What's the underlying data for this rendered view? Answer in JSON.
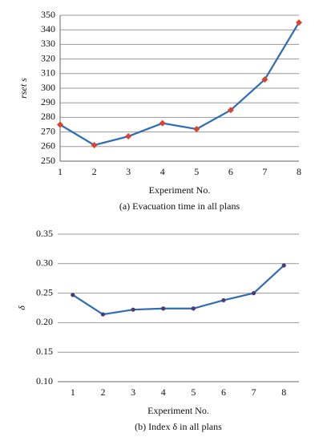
{
  "chart_data": [
    {
      "type": "line",
      "y_label": "rset s",
      "x_label": "Experiment No.",
      "caption": "(a) Evacuation time in all plans",
      "x": [
        1,
        2,
        3,
        4,
        5,
        6,
        7,
        8
      ],
      "xlim": [
        1,
        8
      ],
      "xticks": [
        1,
        2,
        3,
        4,
        5,
        6,
        7,
        8
      ],
      "series": [
        {
          "name": "rset",
          "color": "#2e6db4",
          "marker": "diamond",
          "marker_color": "#d9432f",
          "values": [
            275,
            261,
            267,
            276,
            272,
            285,
            306,
            345
          ]
        }
      ],
      "ylim": [
        250,
        350
      ],
      "yticks": [
        250,
        260,
        270,
        280,
        290,
        300,
        310,
        320,
        330,
        340,
        350
      ],
      "grid": true
    },
    {
      "type": "line",
      "y_label": "δ",
      "x_label": "Experiment No.",
      "caption": "(b) Index δ in all plans",
      "categories": [
        "1",
        "2",
        "3",
        "4",
        "5",
        "6",
        "7",
        "8"
      ],
      "series": [
        {
          "name": "δ",
          "color": "#2e6db4",
          "marker": "circle",
          "marker_color": "#4a3b78",
          "values": [
            0.247,
            0.214,
            0.222,
            0.224,
            0.224,
            0.238,
            0.25,
            0.297
          ]
        }
      ],
      "ylim": [
        0.1,
        0.35
      ],
      "yticks": [
        {
          "value": 0.1,
          "label": "0.10"
        },
        0.15,
        {
          "value": 0.2,
          "label": "0.20"
        },
        0.25,
        {
          "value": 0.3,
          "label": "0.30"
        },
        0.35
      ],
      "grid": true
    }
  ]
}
